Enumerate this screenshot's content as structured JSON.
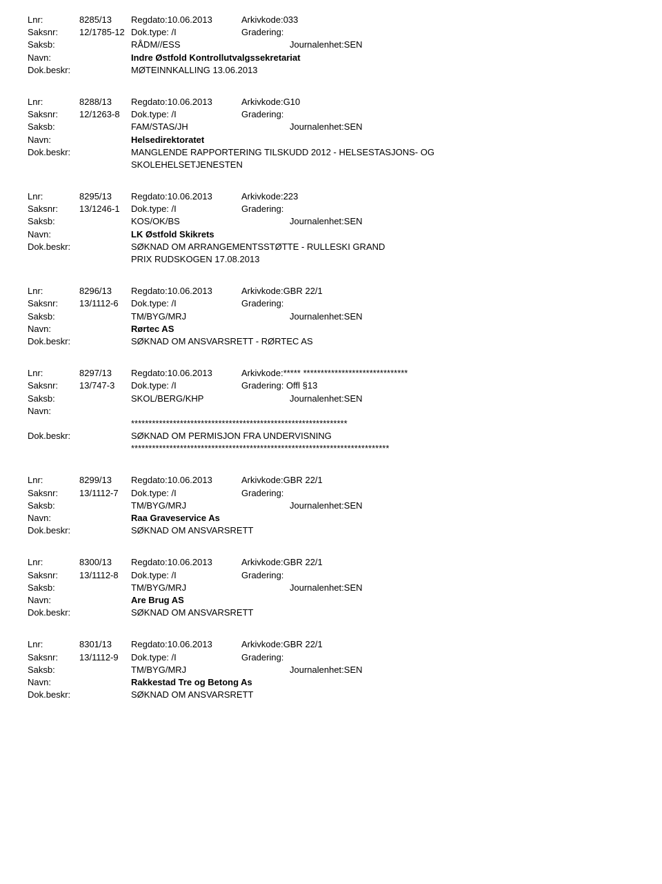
{
  "entries": [
    {
      "lnr": "8285/13",
      "regdato": "Regdato:10.06.2013",
      "arkivkode": "Arkivkode:033",
      "saksnr": "12/1785-12",
      "doktype": "Dok.type: /I",
      "gradering": "Gradering:",
      "saksb_label": "Saksb:",
      "saksb_value": "RÅDM//ESS",
      "journalenhet": "Journalenhet:SEN",
      "navn_label": "Navn:",
      "navn_value": "Indre Østfold Kontrollutvalgssekretariat",
      "dokbeskr_label": "Dok.beskr:",
      "dokbeskr_value": "MØTEINNKALLING 13.06.2013",
      "dokbeskr_line2": ""
    },
    {
      "lnr": "8288/13",
      "regdato": "Regdato:10.06.2013",
      "arkivkode": "Arkivkode:G10",
      "saksnr": "12/1263-8",
      "doktype": "Dok.type: /I",
      "gradering": "Gradering:",
      "saksb_label": "Saksb:",
      "saksb_value": "FAM/STAS/JH",
      "journalenhet": "Journalenhet:SEN",
      "navn_label": "Navn:",
      "navn_value": "Helsedirektoratet",
      "dokbeskr_label": "Dok.beskr:",
      "dokbeskr_value": "MANGLENDE RAPPORTERING TILSKUDD 2012 - HELSESTASJONS- OG",
      "dokbeskr_line2": "SKOLEHELSETJENESTEN"
    },
    {
      "lnr": "8295/13",
      "regdato": "Regdato:10.06.2013",
      "arkivkode": "Arkivkode:223",
      "saksnr": "13/1246-1",
      "doktype": "Dok.type: /I",
      "gradering": "Gradering:",
      "saksb_label": "Saksb:",
      "saksb_value": "KOS/OK/BS",
      "journalenhet": "Journalenhet:SEN",
      "navn_label": "Navn:",
      "navn_value": "LK Østfold Skikrets",
      "dokbeskr_label": "Dok.beskr:",
      "dokbeskr_value": "SØKNAD OM ARRANGEMENTSSTØTTE - RULLESKI GRAND",
      "dokbeskr_line2": "PRIX RUDSKOGEN 17.08.2013"
    },
    {
      "lnr": "8296/13",
      "regdato": "Regdato:10.06.2013",
      "arkivkode": "Arkivkode:GBR 22/1",
      "saksnr": "13/1112-6",
      "doktype": "Dok.type: /I",
      "gradering": "Gradering:",
      "saksb_label": "Saksb:",
      "saksb_value": "TM/BYG/MRJ",
      "journalenhet": "Journalenhet:SEN",
      "navn_label": "Navn:",
      "navn_value": "Rørtec AS",
      "dokbeskr_label": "Dok.beskr:",
      "dokbeskr_value": "SØKNAD OM ANSVARSRETT - RØRTEC AS",
      "dokbeskr_line2": ""
    },
    {
      "lnr": "8297/13",
      "regdato": "Regdato:10.06.2013",
      "arkivkode": "Arkivkode:***** ******************************",
      "saksnr": "13/747-3",
      "doktype": "Dok.type: /I",
      "gradering": "Gradering: Offl §13",
      "saksb_label": "Saksb:",
      "saksb_value": "SKOL/BERG/KHP",
      "journalenhet": "Journalenhet:SEN",
      "navn_label": "Navn:",
      "navn_value": "",
      "navn_stars": "**************************************************************",
      "dokbeskr_label": "Dok.beskr:",
      "dokbeskr_value": "SØKNAD OM PERMISJON FRA UNDERVISNING",
      "dokbeskr_line2": "",
      "dokbeskr_stars": "**************************************************************************"
    },
    {
      "lnr": "8299/13",
      "regdato": "Regdato:10.06.2013",
      "arkivkode": "Arkivkode:GBR 22/1",
      "saksnr": "13/1112-7",
      "doktype": "Dok.type: /I",
      "gradering": "Gradering:",
      "saksb_label": "Saksb:",
      "saksb_value": "TM/BYG/MRJ",
      "journalenhet": "Journalenhet:SEN",
      "navn_label": "Navn:",
      "navn_value": "Raa Graveservice As",
      "dokbeskr_label": "Dok.beskr:",
      "dokbeskr_value": "SØKNAD OM ANSVARSRETT",
      "dokbeskr_line2": ""
    },
    {
      "lnr": "8300/13",
      "regdato": "Regdato:10.06.2013",
      "arkivkode": "Arkivkode:GBR 22/1",
      "saksnr": "13/1112-8",
      "doktype": "Dok.type: /I",
      "gradering": "Gradering:",
      "saksb_label": "Saksb:",
      "saksb_value": "TM/BYG/MRJ",
      "journalenhet": "Journalenhet:SEN",
      "navn_label": "Navn:",
      "navn_value": "Are Brug AS",
      "dokbeskr_label": "Dok.beskr:",
      "dokbeskr_value": "SØKNAD OM ANSVARSRETT",
      "dokbeskr_line2": ""
    },
    {
      "lnr": "8301/13",
      "regdato": "Regdato:10.06.2013",
      "arkivkode": "Arkivkode:GBR 22/1",
      "saksnr": "13/1112-9",
      "doktype": "Dok.type: /I",
      "gradering": "Gradering:",
      "saksb_label": "Saksb:",
      "saksb_value": "TM/BYG/MRJ",
      "journalenhet": "Journalenhet:SEN",
      "navn_label": "Navn:",
      "navn_value": "Rakkestad Tre og Betong As",
      "dokbeskr_label": "Dok.beskr:",
      "dokbeskr_value": "SØKNAD OM ANSVARSRETT",
      "dokbeskr_line2": ""
    }
  ],
  "labels": {
    "lnr": "Lnr:",
    "saksnr": "Saksnr:"
  }
}
